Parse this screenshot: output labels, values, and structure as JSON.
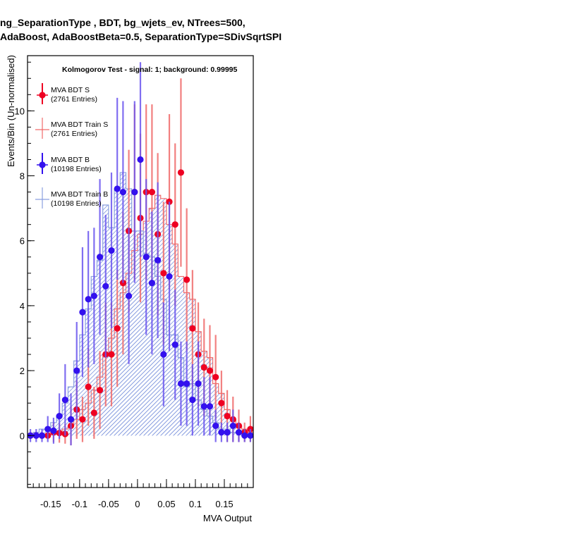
{
  "chart_data": {
    "type": "scatter",
    "title_line1": "ng_SeparationType ,  BDT, bg_wjets_ev, NTrees=500,",
    "title_line2": "AdaBoost, AdaBoostBeta=0.5, SeparationType=SDivSqrtSPI",
    "xlabel": "MVA Output",
    "ylabel": "Events/Bin (Un-normalised)",
    "annotation": "Kolmogorov Test - signal: 1; background: 0.99995",
    "xlim": [
      -0.19,
      0.2
    ],
    "ylim": [
      -1.6,
      11.7
    ],
    "x_ticks": [
      "-0.15",
      "-0.1",
      "-0.05",
      "0",
      "0.05",
      "0.1",
      "0.15"
    ],
    "x_tick_values": [
      -0.15,
      -0.1,
      -0.05,
      0,
      0.05,
      0.1,
      0.15
    ],
    "y_ticks": [
      "0",
      "2",
      "4",
      "6",
      "8",
      "10"
    ],
    "y_tick_values": [
      0,
      2,
      4,
      6,
      8,
      10
    ],
    "legend_position": "top-left",
    "legend": [
      {
        "name": "MVA BDT S",
        "entries": "(2761 Entries)",
        "style": "marker",
        "color": "#ee0022"
      },
      {
        "name": "MVA BDT Train S",
        "entries": "(2761 Entries)",
        "style": "line",
        "color": "#f06a6a"
      },
      {
        "name": "MVA BDT B",
        "entries": "(10198 Entries)",
        "style": "marker",
        "color": "#3311ee"
      },
      {
        "name": "MVA BDT Train B",
        "entries": "(10198 Entries)",
        "style": "line",
        "color": "#8a9fe0"
      }
    ],
    "bin_width": 0.01,
    "series": [
      {
        "name": "MVA BDT S",
        "kind": "points",
        "color": "#ee0022",
        "errcolor": "#f06a6a",
        "x": [
          -0.185,
          -0.175,
          -0.165,
          -0.155,
          -0.145,
          -0.135,
          -0.125,
          -0.115,
          -0.105,
          -0.095,
          -0.085,
          -0.075,
          -0.065,
          -0.055,
          -0.045,
          -0.035,
          -0.025,
          -0.015,
          -0.005,
          0.005,
          0.015,
          0.025,
          0.035,
          0.045,
          0.055,
          0.065,
          0.075,
          0.085,
          0.095,
          0.105,
          0.115,
          0.125,
          0.135,
          0.145,
          0.155,
          0.165,
          0.175,
          0.185,
          0.195
        ],
        "y": [
          0,
          0,
          0,
          0,
          0.1,
          0.08,
          0.05,
          0.3,
          0.8,
          0.5,
          1.5,
          0.7,
          1.4,
          2.5,
          2.5,
          3.3,
          4.7,
          6.3,
          7.5,
          6.7,
          7.5,
          7.5,
          6.2,
          5.0,
          7.2,
          6.5,
          8.1,
          4.8,
          3.3,
          2.5,
          2.1,
          2.0,
          1.8,
          1.0,
          0.6,
          0.5,
          0.3,
          0.1,
          0.2
        ],
        "err": [
          0,
          0,
          0,
          0,
          0.3,
          0.3,
          0.3,
          0.6,
          0.9,
          0.7,
          1.2,
          0.8,
          1.2,
          1.6,
          1.6,
          1.8,
          2.2,
          2.5,
          2.7,
          2.6,
          2.7,
          2.7,
          2.5,
          2.2,
          2.7,
          2.5,
          2.9,
          2.2,
          1.8,
          1.6,
          1.5,
          1.4,
          1.3,
          1.0,
          0.8,
          0.7,
          0.5,
          0.3,
          0.4
        ]
      },
      {
        "name": "MVA BDT B",
        "kind": "points",
        "color": "#3311ee",
        "errcolor": "#6a55ee",
        "x": [
          -0.185,
          -0.175,
          -0.165,
          -0.155,
          -0.145,
          -0.135,
          -0.125,
          -0.115,
          -0.105,
          -0.095,
          -0.085,
          -0.075,
          -0.065,
          -0.055,
          -0.045,
          -0.035,
          -0.025,
          -0.015,
          -0.005,
          0.005,
          0.015,
          0.025,
          0.035,
          0.045,
          0.055,
          0.065,
          0.075,
          0.085,
          0.095,
          0.105,
          0.115,
          0.125,
          0.135,
          0.145,
          0.155,
          0.165,
          0.175,
          0.185,
          0.195
        ],
        "y": [
          0,
          0,
          0,
          0.2,
          0.15,
          0.6,
          1.1,
          0.5,
          2.0,
          3.8,
          4.2,
          4.3,
          5.5,
          4.6,
          5.7,
          7.6,
          7.5,
          4.3,
          7.5,
          8.5,
          5.5,
          4.7,
          5.4,
          2.5,
          4.9,
          2.8,
          1.6,
          1.6,
          1.1,
          1.6,
          0.9,
          0.9,
          0.3,
          0.1,
          0.1,
          0.3,
          0.1,
          0,
          0
        ],
        "err": [
          0.2,
          0.2,
          0.2,
          0.4,
          0.4,
          0.7,
          1.1,
          0.8,
          1.5,
          2.0,
          2.1,
          2.1,
          2.4,
          2.2,
          2.4,
          2.8,
          2.8,
          2.1,
          2.8,
          3.0,
          2.4,
          2.2,
          2.4,
          1.6,
          2.3,
          1.7,
          1.3,
          1.3,
          1.1,
          1.3,
          0.9,
          0.9,
          0.5,
          0.3,
          0.3,
          0.5,
          0.3,
          0.2,
          0.2
        ]
      },
      {
        "name": "MVA BDT Train S",
        "kind": "hist",
        "color": "#f06a6a",
        "x": [
          -0.185,
          -0.175,
          -0.165,
          -0.155,
          -0.145,
          -0.135,
          -0.125,
          -0.115,
          -0.105,
          -0.095,
          -0.085,
          -0.075,
          -0.065,
          -0.055,
          -0.045,
          -0.035,
          -0.025,
          -0.015,
          -0.005,
          0.005,
          0.015,
          0.025,
          0.035,
          0.045,
          0.055,
          0.065,
          0.075,
          0.085,
          0.095,
          0.105,
          0.115,
          0.125,
          0.135,
          0.145,
          0.155,
          0.165,
          0.175,
          0.185,
          0.195
        ],
        "y": [
          0,
          0,
          0,
          0,
          0.05,
          0.1,
          0.2,
          0.3,
          0.5,
          0.8,
          1.0,
          1.4,
          1.8,
          2.5,
          3.0,
          3.9,
          4.4,
          5.0,
          5.7,
          6.2,
          6.6,
          7.0,
          7.4,
          7.3,
          6.5,
          5.9,
          4.9,
          4.4,
          4.2,
          3.2,
          2.6,
          2.4,
          1.6,
          1.3,
          0.8,
          0.5,
          0.3,
          0.2,
          0.1
        ]
      },
      {
        "name": "MVA BDT Train B",
        "kind": "hist",
        "color": "#8a9fe0",
        "x": [
          -0.185,
          -0.175,
          -0.165,
          -0.155,
          -0.145,
          -0.135,
          -0.125,
          -0.115,
          -0.105,
          -0.095,
          -0.085,
          -0.075,
          -0.065,
          -0.055,
          -0.045,
          -0.035,
          -0.025,
          -0.015,
          -0.005,
          0.005,
          0.015,
          0.025,
          0.035,
          0.045,
          0.055,
          0.065,
          0.075,
          0.085,
          0.095,
          0.105,
          0.115,
          0.125,
          0.135,
          0.145,
          0.155,
          0.165,
          0.175,
          0.185,
          0.195
        ],
        "y": [
          0.05,
          0.1,
          0.2,
          0.2,
          0.4,
          0.6,
          1.0,
          1.5,
          2.3,
          3.1,
          3.9,
          4.9,
          5.4,
          7.1,
          6.4,
          7.6,
          8.1,
          7.6,
          6.3,
          6.3,
          5.6,
          5.5,
          4.9,
          4.2,
          3.1,
          3.1,
          2.4,
          1.5,
          1.6,
          1.1,
          0.8,
          0.6,
          0.4,
          0.2,
          0.2,
          0.1,
          0.1,
          0.05,
          0.05
        ]
      }
    ]
  }
}
